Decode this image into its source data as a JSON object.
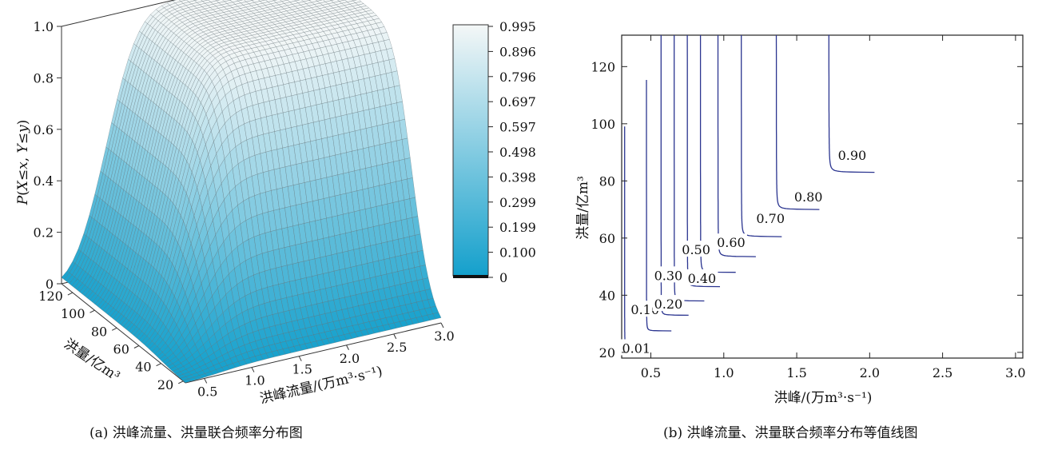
{
  "colors": {
    "low": "#14a0cc",
    "high": "#f4f7f7",
    "contour": "#2b3590",
    "mesh": "#5d6b72"
  },
  "chart_data": [
    {
      "type": "surface",
      "caption": "(a) 洪峰流量、洪量联合频率分布图",
      "zlabel_parts": [
        "P",
        "(",
        "X",
        "≤",
        "x",
        ", ",
        "Y",
        "≤",
        "y",
        ")"
      ],
      "xlabel": "洪峰流量/(万m³·s⁻¹)",
      "ylabel": "洪量/亿m³",
      "x_ticks": [
        "0.5",
        "1.0",
        "1.5",
        "2.0",
        "2.5",
        "3.0"
      ],
      "y_ticks": [
        "20",
        "40",
        "60",
        "80",
        "100",
        "120"
      ],
      "z_ticks": [
        "0",
        "0.2",
        "0.4",
        "0.6",
        "0.8",
        "1.0"
      ],
      "xlim": [
        0.3,
        3.0
      ],
      "ylim": [
        18,
        130
      ],
      "zlim": [
        0,
        1.0
      ],
      "colorbar_ticks": [
        "0",
        "0.100",
        "0.199",
        "0.299",
        "0.398",
        "0.498",
        "0.597",
        "0.697",
        "0.796",
        "0.896",
        "0.995"
      ]
    },
    {
      "type": "contour",
      "caption": "(b) 洪峰流量、洪量联合频率分布等值线图",
      "xlabel": "洪峰/(万m³·s⁻¹)",
      "ylabel": "洪量/亿m³",
      "x_ticks": [
        "0.5",
        "1.0",
        "1.5",
        "2.0",
        "2.5",
        "3.0"
      ],
      "y_ticks": [
        "20",
        "40",
        "60",
        "80",
        "100",
        "120"
      ],
      "xlim": [
        0.3,
        3.05
      ],
      "ylim": [
        18,
        131
      ],
      "levels": [
        {
          "p": 0.01,
          "label": "0.01",
          "x_asym": 0.32,
          "y_asym": 21.5,
          "label_pos": [
            0.4,
            21.5
          ]
        },
        {
          "p": 0.1,
          "label": "0.10",
          "x_asym": 0.47,
          "y_asym": 27.5,
          "label_pos": [
            0.46,
            35.0
          ]
        },
        {
          "p": 0.2,
          "label": "0.20",
          "x_asym": 0.57,
          "y_asym": 33.0,
          "label_pos": [
            0.62,
            37.0
          ]
        },
        {
          "p": 0.3,
          "label": "0.30",
          "x_asym": 0.66,
          "y_asym": 38.0,
          "label_pos": [
            0.62,
            47.0
          ]
        },
        {
          "p": 0.4,
          "label": "0.40",
          "x_asym": 0.75,
          "y_asym": 43.0,
          "label_pos": [
            0.85,
            46.0
          ]
        },
        {
          "p": 0.5,
          "label": "0.50",
          "x_asym": 0.84,
          "y_asym": 48.0,
          "label_pos": [
            0.81,
            56.0
          ]
        },
        {
          "p": 0.6,
          "label": "0.60",
          "x_asym": 0.96,
          "y_asym": 53.5,
          "label_pos": [
            1.05,
            58.5
          ]
        },
        {
          "p": 0.7,
          "label": "0.70",
          "x_asym": 1.12,
          "y_asym": 60.5,
          "label_pos": [
            1.32,
            67.0
          ]
        },
        {
          "p": 0.8,
          "label": "0.80",
          "x_asym": 1.36,
          "y_asym": 70.0,
          "label_pos": [
            1.58,
            74.5
          ]
        },
        {
          "p": 0.9,
          "label": "0.90",
          "x_asym": 1.72,
          "y_asym": 83.0,
          "label_pos": [
            1.88,
            89.0
          ]
        }
      ]
    }
  ]
}
